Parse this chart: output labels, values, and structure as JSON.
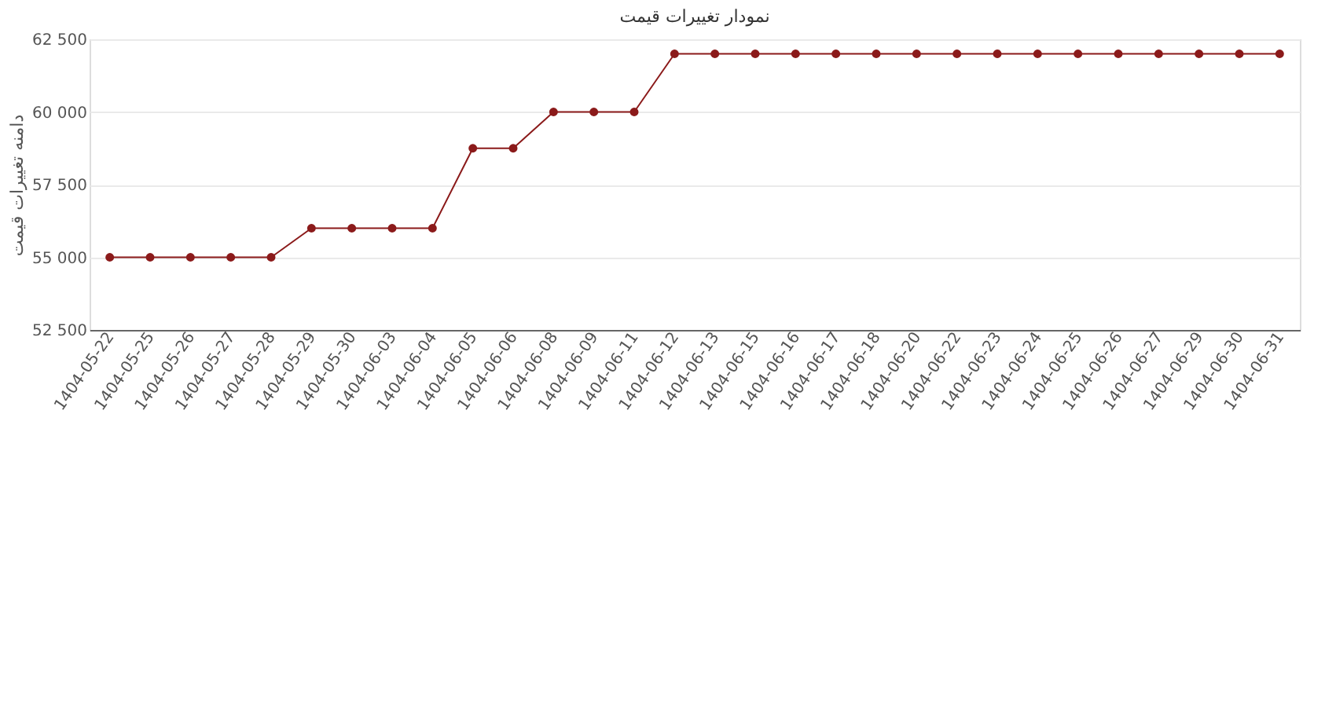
{
  "chart_data": {
    "type": "line",
    "title": "نمودار تغییرات قیمت",
    "ylabel": "دامنه تغییرات قیمت",
    "categories": [
      "1404-05-22",
      "1404-05-25",
      "1404-05-26",
      "1404-05-27",
      "1404-05-28",
      "1404-05-29",
      "1404-05-30",
      "1404-06-03",
      "1404-06-04",
      "1404-06-05",
      "1404-06-06",
      "1404-06-08",
      "1404-06-09",
      "1404-06-11",
      "1404-06-12",
      "1404-06-13",
      "1404-06-15",
      "1404-06-16",
      "1404-06-17",
      "1404-06-18",
      "1404-06-20",
      "1404-06-22",
      "1404-06-23",
      "1404-06-24",
      "1404-06-25",
      "1404-06-26",
      "1404-06-27",
      "1404-06-29",
      "1404-06-30",
      "1404-06-31"
    ],
    "series": [
      {
        "color": "#8b1a1a",
        "values": [
          55000,
          55000,
          55000,
          55000,
          55000,
          56000,
          56000,
          56000,
          56000,
          58750,
          58750,
          60000,
          60000,
          60000,
          62000,
          62000,
          62000,
          62000,
          62000,
          62000,
          62000,
          62000,
          62000,
          62000,
          62000,
          62000,
          62000,
          62000,
          62000,
          62000
        ]
      }
    ],
    "ylim": [
      52500,
      62500
    ],
    "yticks": [
      {
        "value": 52500,
        "label": "52 500"
      },
      {
        "value": 55000,
        "label": "55 000"
      },
      {
        "value": 57500,
        "label": "57 500"
      },
      {
        "value": 60000,
        "label": "60 000"
      },
      {
        "value": 62500,
        "label": "62 500"
      }
    ],
    "grid": "y",
    "marker": "circle",
    "line_style": "solid",
    "legend": false
  }
}
